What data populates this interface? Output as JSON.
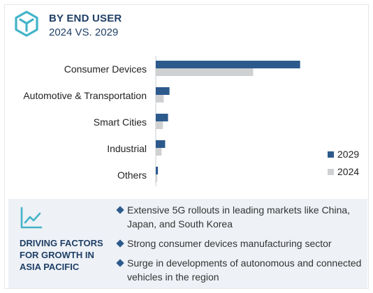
{
  "header": {
    "title": "BY END USER",
    "subtitle": "2024 VS. 2029",
    "icon": "cube-icon"
  },
  "colors": {
    "series_2029": "#2d5a8c",
    "series_2024": "#cfd0d2",
    "title": "#1f3f66"
  },
  "chart_data": {
    "type": "bar",
    "orientation": "horizontal",
    "categories": [
      "Consumer Devices",
      "Automotive & Transportation",
      "Smart Cities",
      "Industrial",
      "Others"
    ],
    "series": [
      {
        "name": "2029",
        "values": [
          20.0,
          1.9,
          1.7,
          1.3,
          0.3
        ]
      },
      {
        "name": "2024",
        "values": [
          13.5,
          1.1,
          1.0,
          0.8,
          0.2
        ]
      }
    ],
    "xlim": [
      0,
      30
    ],
    "grid": false,
    "legend": "right"
  },
  "driving_factors": {
    "icon": "trend-up-icon",
    "title": "DRIVING FACTORS FOR GROWTH IN ASIA PACIFIC",
    "items": [
      "Extensive 5G rollouts in leading markets like China, Japan, and South Korea",
      "Strong consumer devices manufacturing sector",
      "Surge in developments of autonomous and connected vehicles in the region"
    ]
  }
}
